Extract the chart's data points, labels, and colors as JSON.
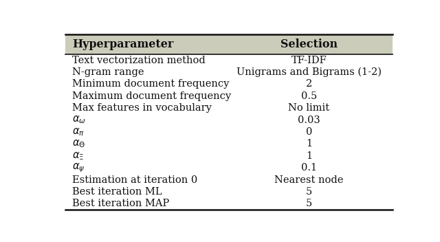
{
  "headers": [
    "Hyperparameter",
    "Selection"
  ],
  "col1_items": [
    "Text vectorization method",
    "N-gram range",
    "Minimum document frequency",
    "Maximum document frequency",
    "Max features in vocabulary",
    "$\\alpha_{\\omega}$",
    "$\\alpha_{\\pi}$",
    "$\\alpha_{\\Theta}$",
    "$\\alpha_{\\Xi}$",
    "$\\alpha_{\\psi}$",
    "Estimation at iteration 0",
    "Best iteration ML",
    "Best iteration MAP"
  ],
  "col2_items": [
    "TF-IDF",
    "Unigrams and Bigrams (1-2)",
    "2",
    "0.5",
    "No limit",
    "0.03",
    "0",
    "1",
    "1",
    "0.1",
    "Nearest node",
    "5",
    "5"
  ],
  "header_bg": "#ccccbb",
  "line_color": "#111111",
  "text_color": "#111111",
  "font_size": 10.5,
  "header_font_size": 11.5
}
